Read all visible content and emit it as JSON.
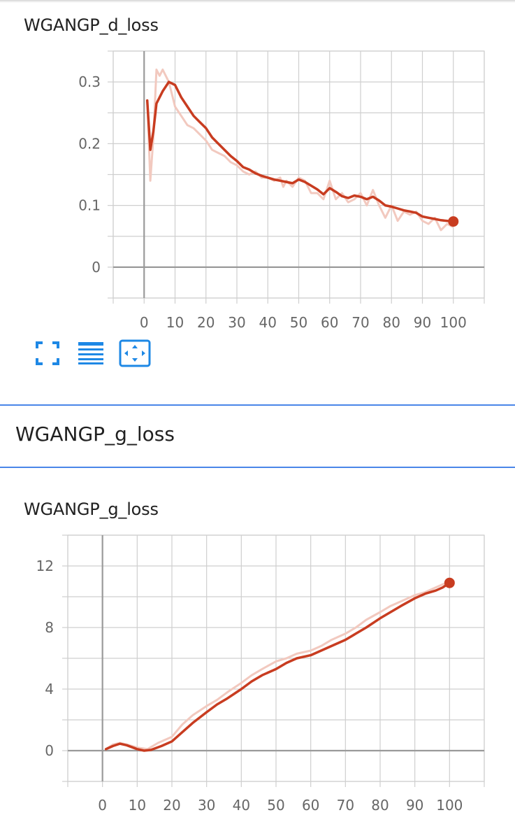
{
  "panels": {
    "d_loss": {
      "title": "WGANGP_d_loss"
    },
    "section": {
      "title": "WGANGP_g_loss"
    },
    "g_loss": {
      "title": "WGANGP_g_loss"
    }
  },
  "toolbar": {
    "fullscreen_icon": "fullscreen-icon",
    "legend_icon": "list-lines-icon",
    "fit_icon": "fit-domain-icon"
  },
  "colors": {
    "accent": "#c83c20",
    "raw_series": "#f2c9bf",
    "divider": "#4a86e8",
    "toolbar_blue": "#1e88e5"
  },
  "chart_data": [
    {
      "type": "line",
      "title": "WGANGP_d_loss",
      "xlim": [
        -10,
        110
      ],
      "ylim": [
        -0.05,
        0.35
      ],
      "x_ticks": [
        0,
        10,
        20,
        30,
        40,
        50,
        60,
        70,
        80,
        90,
        100
      ],
      "y_ticks": [
        0,
        0.1,
        0.2,
        0.3
      ],
      "y_tick_labels": [
        "0",
        "0.1",
        "0.2",
        "0.3"
      ],
      "grid": true,
      "series": [
        {
          "role": "raw",
          "x": [
            1,
            2,
            3,
            4,
            5,
            6,
            7,
            8,
            9,
            10,
            12,
            14,
            16,
            18,
            20,
            22,
            24,
            26,
            28,
            30,
            32,
            34,
            36,
            38,
            40,
            42,
            44,
            45,
            46,
            48,
            50,
            52,
            54,
            56,
            58,
            60,
            62,
            64,
            66,
            68,
            70,
            72,
            74,
            76,
            78,
            80,
            82,
            84,
            86,
            88,
            90,
            92,
            94,
            96,
            98,
            100
          ],
          "y": [
            0.27,
            0.14,
            0.21,
            0.32,
            0.31,
            0.32,
            0.31,
            0.3,
            0.28,
            0.26,
            0.245,
            0.23,
            0.225,
            0.215,
            0.205,
            0.19,
            0.185,
            0.18,
            0.17,
            0.165,
            0.155,
            0.15,
            0.155,
            0.145,
            0.145,
            0.14,
            0.145,
            0.13,
            0.14,
            0.13,
            0.145,
            0.14,
            0.12,
            0.12,
            0.11,
            0.14,
            0.11,
            0.12,
            0.105,
            0.11,
            0.12,
            0.1,
            0.125,
            0.1,
            0.08,
            0.1,
            0.075,
            0.09,
            0.085,
            0.09,
            0.075,
            0.07,
            0.08,
            0.06,
            0.07,
            0.065
          ]
        },
        {
          "role": "smoothed",
          "x": [
            1,
            2,
            3,
            4,
            6,
            8,
            10,
            12,
            14,
            16,
            18,
            20,
            22,
            24,
            26,
            28,
            30,
            32,
            34,
            36,
            38,
            40,
            42,
            44,
            46,
            48,
            50,
            52,
            54,
            56,
            58,
            60,
            62,
            64,
            66,
            68,
            70,
            72,
            74,
            76,
            78,
            80,
            82,
            84,
            86,
            88,
            90,
            92,
            94,
            96,
            98,
            100
          ],
          "y": [
            0.27,
            0.19,
            0.22,
            0.265,
            0.285,
            0.3,
            0.295,
            0.275,
            0.26,
            0.245,
            0.235,
            0.225,
            0.21,
            0.2,
            0.19,
            0.18,
            0.172,
            0.162,
            0.158,
            0.152,
            0.148,
            0.145,
            0.142,
            0.14,
            0.138,
            0.136,
            0.142,
            0.138,
            0.132,
            0.126,
            0.118,
            0.128,
            0.122,
            0.115,
            0.112,
            0.116,
            0.114,
            0.11,
            0.114,
            0.108,
            0.1,
            0.098,
            0.095,
            0.092,
            0.09,
            0.088,
            0.082,
            0.08,
            0.078,
            0.076,
            0.075,
            0.074
          ]
        }
      ]
    },
    {
      "type": "line",
      "title": "WGANGP_g_loss",
      "xlim": [
        -10,
        110
      ],
      "ylim": [
        -2,
        14
      ],
      "x_ticks": [
        0,
        10,
        20,
        30,
        40,
        50,
        60,
        70,
        80,
        90,
        100
      ],
      "y_ticks": [
        0,
        4,
        8,
        12
      ],
      "y_tick_labels": [
        "0",
        "4",
        "8",
        "12"
      ],
      "grid": true,
      "series": [
        {
          "role": "raw",
          "x": [
            1,
            3,
            5,
            7,
            10,
            13,
            16,
            20,
            23,
            26,
            30,
            33,
            36,
            40,
            43,
            46,
            50,
            53,
            56,
            60,
            63,
            66,
            70,
            73,
            76,
            80,
            83,
            86,
            90,
            93,
            96,
            100
          ],
          "y": [
            0.1,
            0.4,
            0.5,
            0.4,
            0.2,
            0.1,
            0.5,
            0.9,
            1.7,
            2.3,
            2.9,
            3.3,
            3.8,
            4.4,
            4.9,
            5.3,
            5.8,
            6.0,
            6.3,
            6.5,
            6.8,
            7.2,
            7.6,
            8.0,
            8.5,
            9.0,
            9.4,
            9.7,
            10.1,
            10.3,
            10.6,
            11.0
          ]
        },
        {
          "role": "smoothed",
          "x": [
            1,
            3,
            5,
            7,
            10,
            12,
            14,
            17,
            20,
            23,
            26,
            30,
            33,
            36,
            40,
            43,
            46,
            50,
            53,
            56,
            60,
            63,
            66,
            70,
            73,
            76,
            80,
            83,
            86,
            90,
            93,
            96,
            98,
            100
          ],
          "y": [
            0.1,
            0.3,
            0.45,
            0.35,
            0.1,
            0.0,
            0.05,
            0.3,
            0.6,
            1.2,
            1.8,
            2.5,
            3.0,
            3.4,
            4.0,
            4.5,
            4.9,
            5.3,
            5.7,
            6.0,
            6.2,
            6.5,
            6.8,
            7.2,
            7.6,
            8.0,
            8.6,
            9.0,
            9.4,
            9.9,
            10.2,
            10.4,
            10.6,
            10.9
          ]
        }
      ]
    }
  ]
}
